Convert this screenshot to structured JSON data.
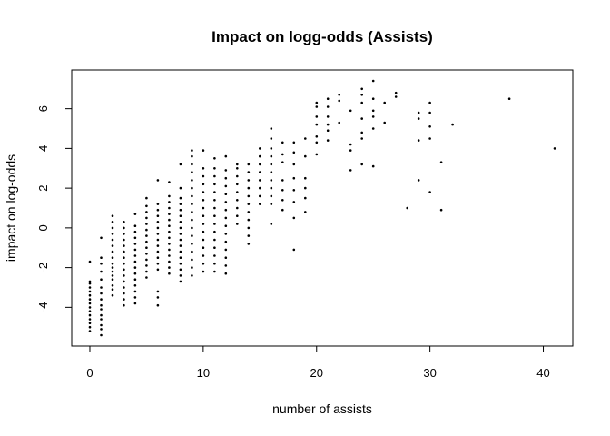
{
  "chart_data": {
    "type": "scatter",
    "title": "Impact on logg-odds (Assists)",
    "xlabel": "number of assists",
    "ylabel": "impact on log-odds",
    "xlim": [
      -1.6,
      42.6
    ],
    "ylim": [
      -5.95,
      7.95
    ],
    "x_ticks": [
      0,
      10,
      20,
      30,
      40
    ],
    "y_ticks": [
      -4,
      -2,
      0,
      2,
      4,
      6
    ],
    "grid": false,
    "legend": "none",
    "marker_color": "#000000",
    "points": [
      [
        0,
        -5.2
      ],
      [
        0,
        -5.0
      ],
      [
        0,
        -4.8
      ],
      [
        0,
        -4.6
      ],
      [
        0,
        -4.4
      ],
      [
        0,
        -4.2
      ],
      [
        0,
        -4.0
      ],
      [
        0,
        -3.8
      ],
      [
        0,
        -3.6
      ],
      [
        0,
        -3.4
      ],
      [
        0,
        -3.2
      ],
      [
        0,
        -3.0
      ],
      [
        0,
        -2.8
      ],
      [
        0,
        -2.7
      ],
      [
        0,
        -1.7
      ],
      [
        1,
        -5.4
      ],
      [
        1,
        -5.1
      ],
      [
        1,
        -4.9
      ],
      [
        1,
        -4.6
      ],
      [
        1,
        -4.4
      ],
      [
        1,
        -4.1
      ],
      [
        1,
        -3.9
      ],
      [
        1,
        -3.6
      ],
      [
        1,
        -3.3
      ],
      [
        1,
        -3.0
      ],
      [
        1,
        -2.6
      ],
      [
        1,
        -2.2
      ],
      [
        1,
        -1.8
      ],
      [
        1,
        -1.5
      ],
      [
        1,
        -0.5
      ],
      [
        2,
        -3.4
      ],
      [
        2,
        -3.1
      ],
      [
        2,
        -2.9
      ],
      [
        2,
        -2.6
      ],
      [
        2,
        -2.4
      ],
      [
        2,
        -2.2
      ],
      [
        2,
        -2.0
      ],
      [
        2,
        -1.8
      ],
      [
        2,
        -1.5
      ],
      [
        2,
        -1.2
      ],
      [
        2,
        -0.9
      ],
      [
        2,
        -0.6
      ],
      [
        2,
        -0.3
      ],
      [
        2,
        0.0
      ],
      [
        2,
        0.3
      ],
      [
        2,
        0.6
      ],
      [
        3,
        -3.9
      ],
      [
        3,
        -3.6
      ],
      [
        3,
        -3.3
      ],
      [
        3,
        -3.0
      ],
      [
        3,
        -2.7
      ],
      [
        3,
        -2.4
      ],
      [
        3,
        -2.1
      ],
      [
        3,
        -1.8
      ],
      [
        3,
        -1.5
      ],
      [
        3,
        -1.2
      ],
      [
        3,
        -0.9
      ],
      [
        3,
        -0.6
      ],
      [
        3,
        -0.3
      ],
      [
        3,
        0.0
      ],
      [
        3,
        0.3
      ],
      [
        4,
        -3.8
      ],
      [
        4,
        -3.5
      ],
      [
        4,
        -3.2
      ],
      [
        4,
        -2.9
      ],
      [
        4,
        -2.6
      ],
      [
        4,
        -2.3
      ],
      [
        4,
        -2.0
      ],
      [
        4,
        -1.7
      ],
      [
        4,
        -1.4
      ],
      [
        4,
        -1.1
      ],
      [
        4,
        -0.8
      ],
      [
        4,
        -0.5
      ],
      [
        4,
        -0.2
      ],
      [
        4,
        0.1
      ],
      [
        4,
        0.7
      ],
      [
        5,
        -2.5
      ],
      [
        5,
        -2.2
      ],
      [
        5,
        -1.9
      ],
      [
        5,
        -1.6
      ],
      [
        5,
        -1.3
      ],
      [
        5,
        -1.0
      ],
      [
        5,
        -0.7
      ],
      [
        5,
        -0.4
      ],
      [
        5,
        -0.1
      ],
      [
        5,
        0.2
      ],
      [
        5,
        0.5
      ],
      [
        5,
        0.8
      ],
      [
        5,
        1.1
      ],
      [
        5,
        1.5
      ],
      [
        6,
        -3.9
      ],
      [
        6,
        -3.5
      ],
      [
        6,
        -3.2
      ],
      [
        6,
        -2.1
      ],
      [
        6,
        -1.8
      ],
      [
        6,
        -1.5
      ],
      [
        6,
        -1.2
      ],
      [
        6,
        -0.9
      ],
      [
        6,
        -0.6
      ],
      [
        6,
        -0.3
      ],
      [
        6,
        0.0
      ],
      [
        6,
        0.3
      ],
      [
        6,
        0.6
      ],
      [
        6,
        0.9
      ],
      [
        6,
        1.2
      ],
      [
        6,
        2.4
      ],
      [
        7,
        -2.3
      ],
      [
        7,
        -2.0
      ],
      [
        7,
        -1.7
      ],
      [
        7,
        -1.4
      ],
      [
        7,
        -1.1
      ],
      [
        7,
        -0.8
      ],
      [
        7,
        -0.5
      ],
      [
        7,
        -0.2
      ],
      [
        7,
        0.1
      ],
      [
        7,
        0.4
      ],
      [
        7,
        0.7
      ],
      [
        7,
        1.0
      ],
      [
        7,
        1.3
      ],
      [
        7,
        1.6
      ],
      [
        7,
        2.3
      ],
      [
        8,
        -2.7
      ],
      [
        8,
        -2.4
      ],
      [
        8,
        -2.1
      ],
      [
        8,
        -1.8
      ],
      [
        8,
        -1.5
      ],
      [
        8,
        -1.2
      ],
      [
        8,
        -0.9
      ],
      [
        8,
        -0.6
      ],
      [
        8,
        -0.3
      ],
      [
        8,
        0.0
      ],
      [
        8,
        0.3
      ],
      [
        8,
        0.6
      ],
      [
        8,
        0.9
      ],
      [
        8,
        1.2
      ],
      [
        8,
        1.5
      ],
      [
        8,
        2.0
      ],
      [
        8,
        3.2
      ],
      [
        9,
        -2.4
      ],
      [
        9,
        -2.0
      ],
      [
        9,
        -1.6
      ],
      [
        9,
        -1.2
      ],
      [
        9,
        -0.8
      ],
      [
        9,
        -0.4
      ],
      [
        9,
        0.0
      ],
      [
        9,
        0.4
      ],
      [
        9,
        0.8
      ],
      [
        9,
        1.2
      ],
      [
        9,
        1.6
      ],
      [
        9,
        2.0
      ],
      [
        9,
        2.4
      ],
      [
        9,
        2.8
      ],
      [
        9,
        3.2
      ],
      [
        9,
        3.6
      ],
      [
        9,
        3.9
      ],
      [
        10,
        -2.2
      ],
      [
        10,
        -1.8
      ],
      [
        10,
        -1.4
      ],
      [
        10,
        -1.0
      ],
      [
        10,
        -0.6
      ],
      [
        10,
        -0.2
      ],
      [
        10,
        0.2
      ],
      [
        10,
        0.6
      ],
      [
        10,
        1.0
      ],
      [
        10,
        1.4
      ],
      [
        10,
        1.8
      ],
      [
        10,
        2.2
      ],
      [
        10,
        2.6
      ],
      [
        10,
        3.0
      ],
      [
        10,
        3.9
      ],
      [
        11,
        -2.2
      ],
      [
        11,
        -1.8
      ],
      [
        11,
        -1.4
      ],
      [
        11,
        -1.0
      ],
      [
        11,
        -0.6
      ],
      [
        11,
        -0.2
      ],
      [
        11,
        0.2
      ],
      [
        11,
        0.6
      ],
      [
        11,
        1.0
      ],
      [
        11,
        1.4
      ],
      [
        11,
        1.8
      ],
      [
        11,
        2.2
      ],
      [
        11,
        2.6
      ],
      [
        11,
        3.0
      ],
      [
        11,
        3.5
      ],
      [
        12,
        -2.3
      ],
      [
        12,
        -1.9
      ],
      [
        12,
        -1.5
      ],
      [
        12,
        -1.1
      ],
      [
        12,
        -0.7
      ],
      [
        12,
        -0.3
      ],
      [
        12,
        0.1
      ],
      [
        12,
        0.5
      ],
      [
        12,
        0.9
      ],
      [
        12,
        1.3
      ],
      [
        12,
        1.7
      ],
      [
        12,
        2.1
      ],
      [
        12,
        2.5
      ],
      [
        12,
        2.9
      ],
      [
        12,
        3.6
      ],
      [
        13,
        0.2
      ],
      [
        13,
        0.6
      ],
      [
        13,
        1.0
      ],
      [
        13,
        1.4
      ],
      [
        13,
        1.8
      ],
      [
        13,
        2.2
      ],
      [
        13,
        2.6
      ],
      [
        13,
        3.0
      ],
      [
        13,
        3.2
      ],
      [
        14,
        -0.8
      ],
      [
        14,
        -0.4
      ],
      [
        14,
        0.0
      ],
      [
        14,
        0.4
      ],
      [
        14,
        0.8
      ],
      [
        14,
        1.2
      ],
      [
        14,
        1.6
      ],
      [
        14,
        2.0
      ],
      [
        14,
        2.4
      ],
      [
        14,
        2.8
      ],
      [
        14,
        3.2
      ],
      [
        15,
        1.2
      ],
      [
        15,
        1.6
      ],
      [
        15,
        2.0
      ],
      [
        15,
        2.4
      ],
      [
        15,
        2.8
      ],
      [
        15,
        3.2
      ],
      [
        15,
        3.6
      ],
      [
        15,
        4.0
      ],
      [
        16,
        0.2
      ],
      [
        16,
        1.2
      ],
      [
        16,
        1.6
      ],
      [
        16,
        2.0
      ],
      [
        16,
        2.4
      ],
      [
        16,
        2.8
      ],
      [
        16,
        3.2
      ],
      [
        16,
        3.6
      ],
      [
        16,
        4.0
      ],
      [
        16,
        4.5
      ],
      [
        16,
        5.0
      ],
      [
        17,
        0.9
      ],
      [
        17,
        1.4
      ],
      [
        17,
        1.9
      ],
      [
        17,
        2.4
      ],
      [
        17,
        3.3
      ],
      [
        17,
        3.7
      ],
      [
        17,
        4.3
      ],
      [
        18,
        -1.1
      ],
      [
        18,
        0.5
      ],
      [
        18,
        1.3
      ],
      [
        18,
        1.9
      ],
      [
        18,
        2.5
      ],
      [
        18,
        3.2
      ],
      [
        18,
        3.8
      ],
      [
        18,
        4.3
      ],
      [
        19,
        0.8
      ],
      [
        19,
        1.5
      ],
      [
        19,
        2.0
      ],
      [
        19,
        2.5
      ],
      [
        19,
        3.6
      ],
      [
        19,
        4.5
      ],
      [
        20,
        3.7
      ],
      [
        20,
        4.3
      ],
      [
        20,
        4.6
      ],
      [
        20,
        5.2
      ],
      [
        20,
        5.6
      ],
      [
        20,
        6.1
      ],
      [
        20,
        6.3
      ],
      [
        21,
        4.4
      ],
      [
        21,
        4.9
      ],
      [
        21,
        5.2
      ],
      [
        21,
        5.6
      ],
      [
        21,
        6.1
      ],
      [
        21,
        6.5
      ],
      [
        22,
        5.3
      ],
      [
        22,
        6.4
      ],
      [
        22,
        6.7
      ],
      [
        23,
        2.9
      ],
      [
        23,
        3.9
      ],
      [
        23,
        4.2
      ],
      [
        23,
        5.9
      ],
      [
        24,
        3.2
      ],
      [
        24,
        4.5
      ],
      [
        24,
        4.8
      ],
      [
        24,
        5.5
      ],
      [
        24,
        6.3
      ],
      [
        24,
        6.7
      ],
      [
        24,
        7.0
      ],
      [
        25,
        3.1
      ],
      [
        25,
        5.0
      ],
      [
        25,
        5.6
      ],
      [
        25,
        5.9
      ],
      [
        25,
        6.5
      ],
      [
        25,
        7.4
      ],
      [
        26,
        5.3
      ],
      [
        26,
        6.3
      ],
      [
        27,
        6.6
      ],
      [
        27,
        6.8
      ],
      [
        28,
        1.0
      ],
      [
        29,
        2.4
      ],
      [
        29,
        4.4
      ],
      [
        29,
        5.5
      ],
      [
        29,
        5.8
      ],
      [
        30,
        1.8
      ],
      [
        30,
        4.5
      ],
      [
        30,
        5.1
      ],
      [
        30,
        5.8
      ],
      [
        30,
        6.3
      ],
      [
        31,
        0.9
      ],
      [
        31,
        3.3
      ],
      [
        32,
        5.2
      ],
      [
        37,
        6.5
      ],
      [
        41,
        4.0
      ]
    ]
  }
}
